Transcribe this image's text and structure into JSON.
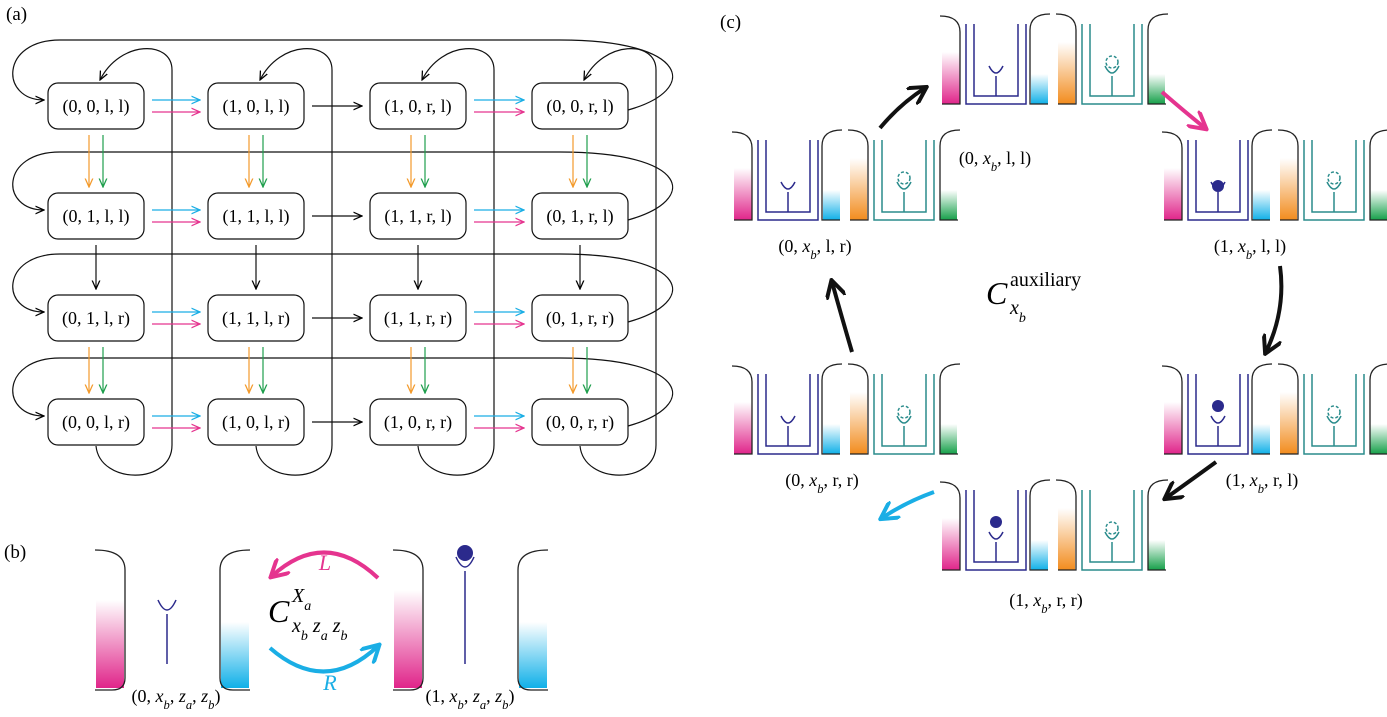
{
  "panel_a": {
    "label": "(a)",
    "nodes": [
      [
        "(0, 0, l, l)",
        "(1, 0, l, l)",
        "(1, 0, r, l)",
        "(0, 0, r, l)"
      ],
      [
        "(0, 1, l, l)",
        "(1, 1, l, l)",
        "(1, 1, r, l)",
        "(0, 1, r, l)"
      ],
      [
        "(0, 1, l, r)",
        "(1, 1, l, r)",
        "(1, 1, r, r)",
        "(0, 1, r, r)"
      ],
      [
        "(0, 0, l, r)",
        "(1, 0, l, r)",
        "(1, 0, r, r)",
        "(0, 0, r, r)"
      ]
    ]
  },
  "panel_b": {
    "label": "(b)",
    "left_state": "(0, x_b, z_a, z_b)",
    "right_state": "(1, x_b, z_a, z_b)",
    "arrow_L": "L",
    "arrow_R": "R",
    "operator": {
      "base": "C",
      "sup": "X_a",
      "sub": "x_b z_a z_b"
    }
  },
  "panel_c": {
    "label": "(c)",
    "states": [
      "(0, x_b, l, l)",
      "(1, x_b, l, l)",
      "(1, x_b, r, l)",
      "(1, x_b, r, r)",
      "(0, x_b, r, r)",
      "(0, x_b, l, r)"
    ],
    "operator": {
      "base": "C",
      "sup": "auxiliary",
      "sub": "x_b"
    }
  }
}
